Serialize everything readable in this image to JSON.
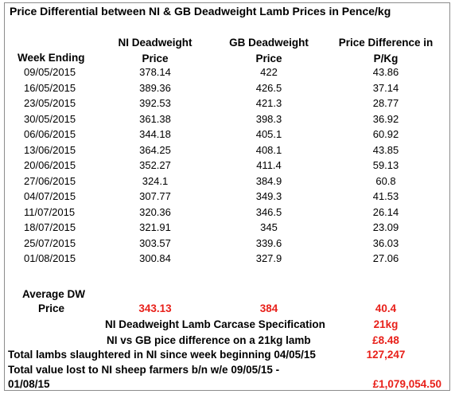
{
  "title": "Price Differential between NI & GB Deadweight Lamb Prices in Pence/kg",
  "headers": {
    "week": "Week Ending",
    "ni_line1": "NI Deadweight",
    "ni_line2": "Price",
    "gb_line1": "GB Deadweight",
    "gb_line2": "Price",
    "diff_line1": "Price Difference in",
    "diff_line2": "P/Kg"
  },
  "rows": [
    {
      "week": "09/05/2015",
      "ni": "378.14",
      "gb": "422",
      "diff": "43.86"
    },
    {
      "week": "16/05/2015",
      "ni": "389.36",
      "gb": "426.5",
      "diff": "37.14"
    },
    {
      "week": "23/05/2015",
      "ni": "392.53",
      "gb": "421.3",
      "diff": "28.77"
    },
    {
      "week": "30/05/2015",
      "ni": "361.38",
      "gb": "398.3",
      "diff": "36.92"
    },
    {
      "week": "06/06/2015",
      "ni": "344.18",
      "gb": "405.1",
      "diff": "60.92"
    },
    {
      "week": "13/06/2015",
      "ni": "364.25",
      "gb": "408.1",
      "diff": "43.85"
    },
    {
      "week": "20/06/2015",
      "ni": "352.27",
      "gb": "411.4",
      "diff": "59.13"
    },
    {
      "week": "27/06/2015",
      "ni": "324.1",
      "gb": "384.9",
      "diff": "60.8"
    },
    {
      "week": "04/07/2015",
      "ni": "307.77",
      "gb": "349.3",
      "diff": "41.53"
    },
    {
      "week": "11/07/2015",
      "ni": "320.36",
      "gb": "346.5",
      "diff": "26.14"
    },
    {
      "week": "18/07/2015",
      "ni": "321.91",
      "gb": "345",
      "diff": "23.09"
    },
    {
      "week": "25/07/2015",
      "ni": "303.57",
      "gb": "339.6",
      "diff": "36.03"
    },
    {
      "week": "01/08/2015",
      "ni": "300.84",
      "gb": "327.9",
      "diff": "27.06"
    }
  ],
  "average": {
    "label_line1": "Average DW",
    "label_line2": "Price",
    "ni": "343.13",
    "gb": "384",
    "diff": "40.4"
  },
  "summary": {
    "spec_label": "NI Deadweight Lamb Carcase Specification",
    "spec_value": "21kg",
    "pice_label": "NI vs GB pice difference on a 21kg lamb",
    "pice_value": "£8.48",
    "total_label": "Total lambs slaughtered in NI since week beginning 04/05/15",
    "total_value": "127,247",
    "value_label_line1": "Total value lost to NI sheep farmers b/n w/e 09/05/15 -",
    "value_label_line2": "01/08/15",
    "value_value": "£1,079,054.50"
  }
}
